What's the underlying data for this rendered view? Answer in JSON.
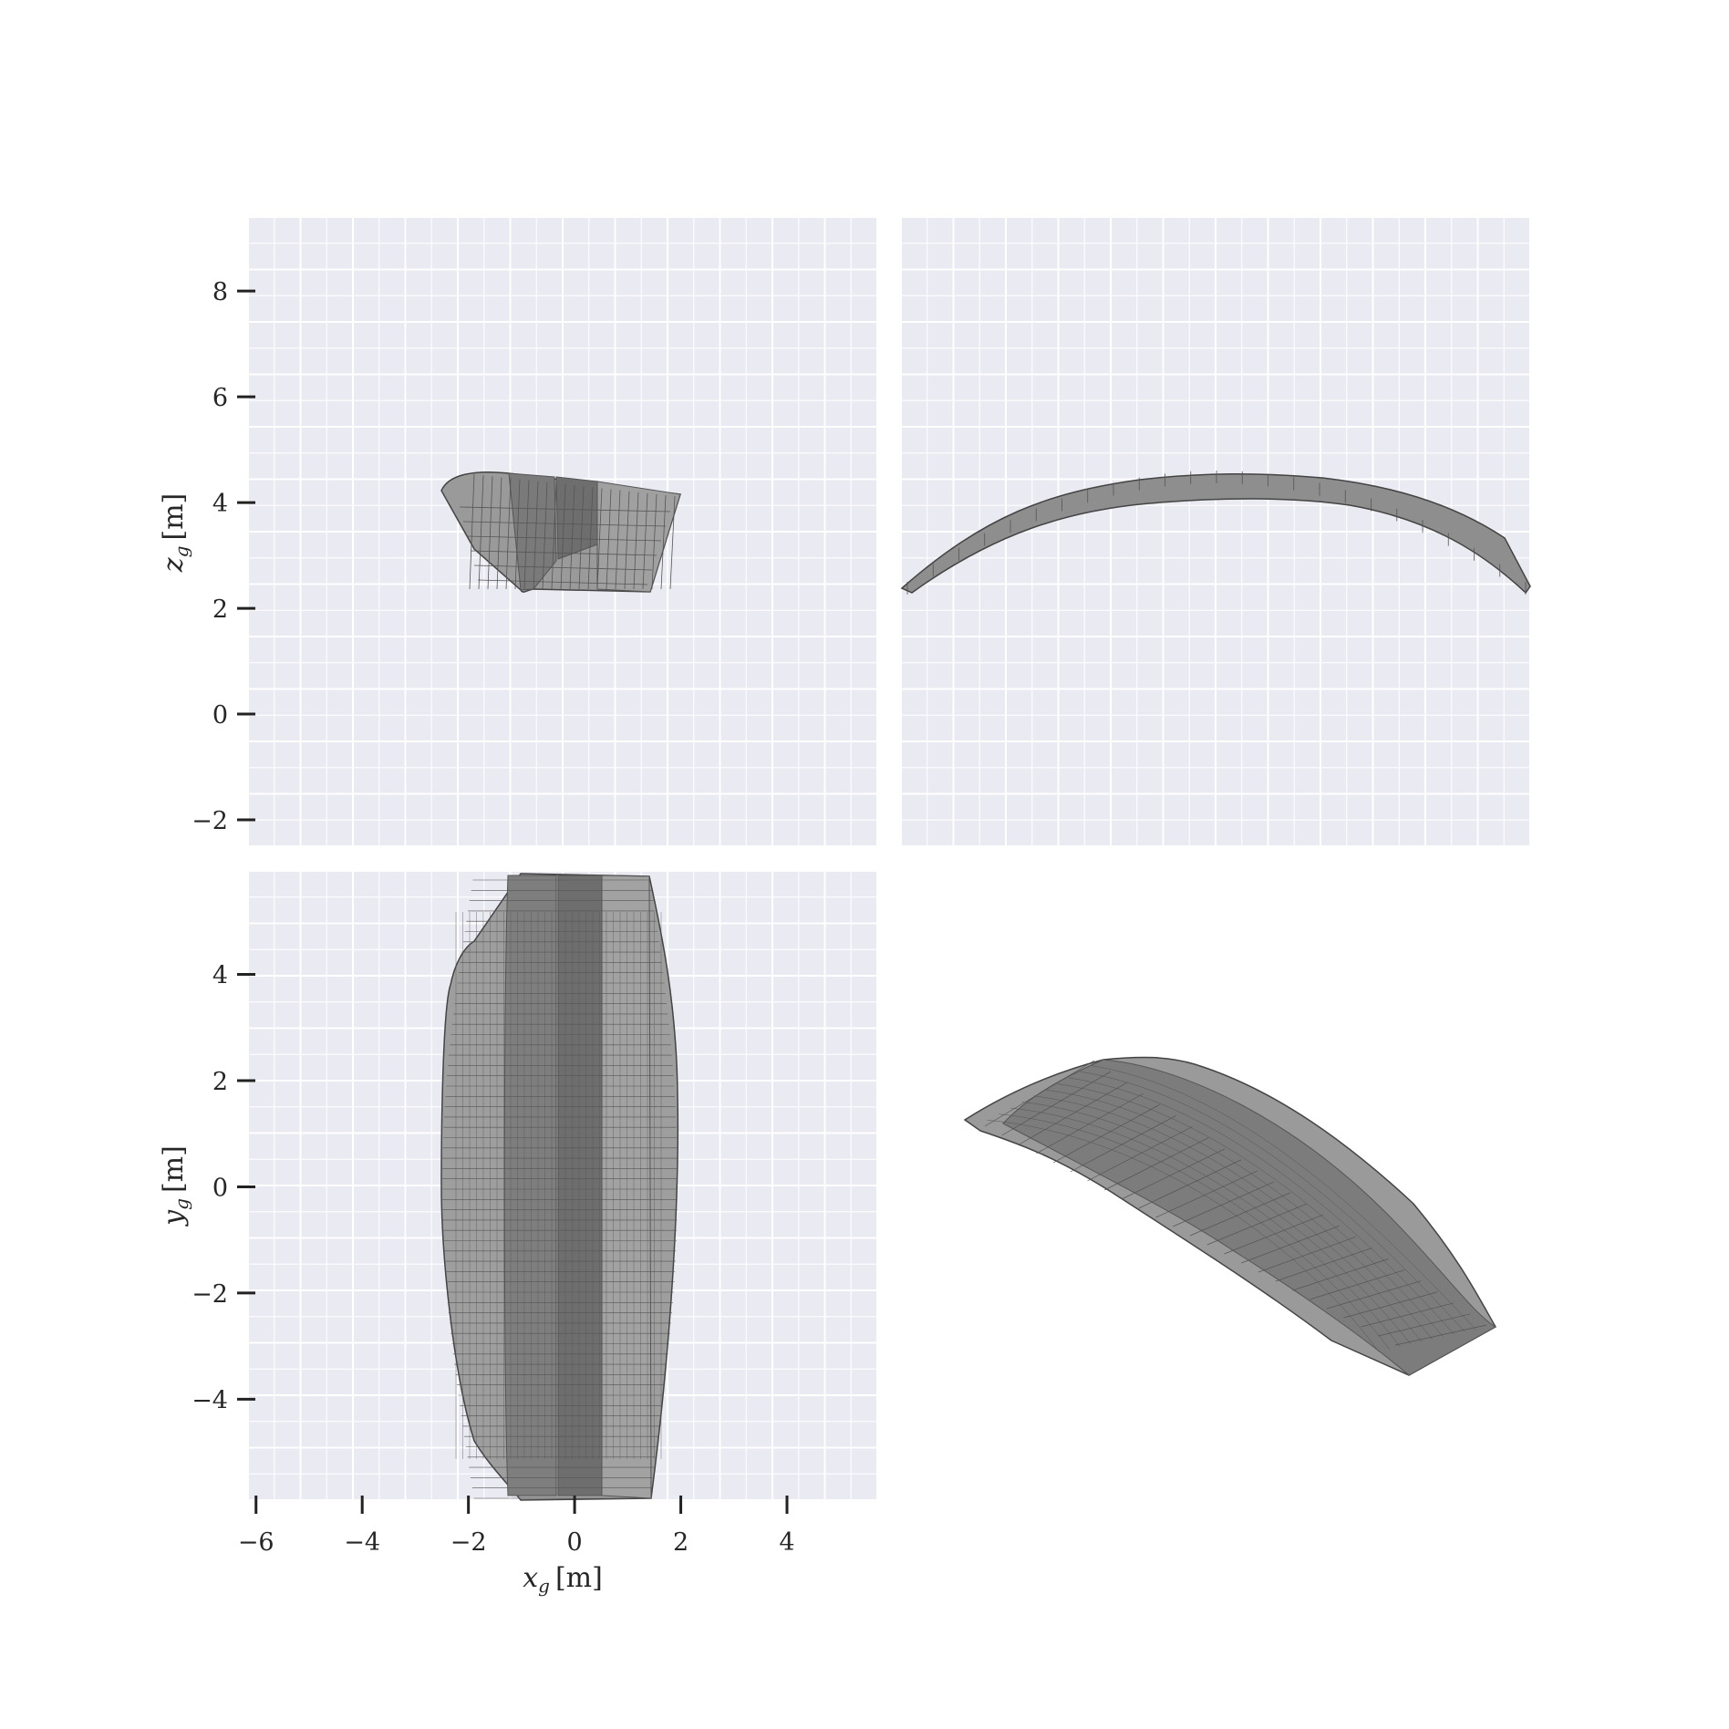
{
  "figure": {
    "type": "multi-view",
    "background_panel_color": "#eaeaf2",
    "grid_color": "#ffffff",
    "mesh_fill": "#8c8c8c",
    "mesh_edge": "#555555"
  },
  "panels": {
    "front_view": {
      "ylabel_var": "z",
      "ylabel_sub": "g",
      "ylabel_unit": "[m]",
      "yticks": [
        "−2",
        "0",
        "2",
        "4",
        "6",
        "8"
      ],
      "ytick_values": [
        -2,
        0,
        2,
        4,
        6,
        8
      ],
      "ylim": [
        -2.5,
        9.4
      ]
    },
    "side_view": {},
    "top_view": {
      "xlabel_var": "x",
      "xlabel_sub": "g",
      "xlabel_unit": "[m]",
      "ylabel_var": "y",
      "ylabel_sub": "g",
      "ylabel_unit": "[m]",
      "xticks": [
        "−6",
        "−4",
        "−2",
        "0",
        "2",
        "4"
      ],
      "xtick_values": [
        -6,
        -4,
        -2,
        0,
        2,
        4
      ],
      "yticks": [
        "−4",
        "−2",
        "0",
        "2",
        "4"
      ],
      "ytick_values": [
        -4,
        -2,
        0,
        2,
        4
      ],
      "xlim": [
        -6.15,
        5.7
      ],
      "ylim": [
        -5.9,
        5.95
      ]
    },
    "iso_view": {}
  }
}
